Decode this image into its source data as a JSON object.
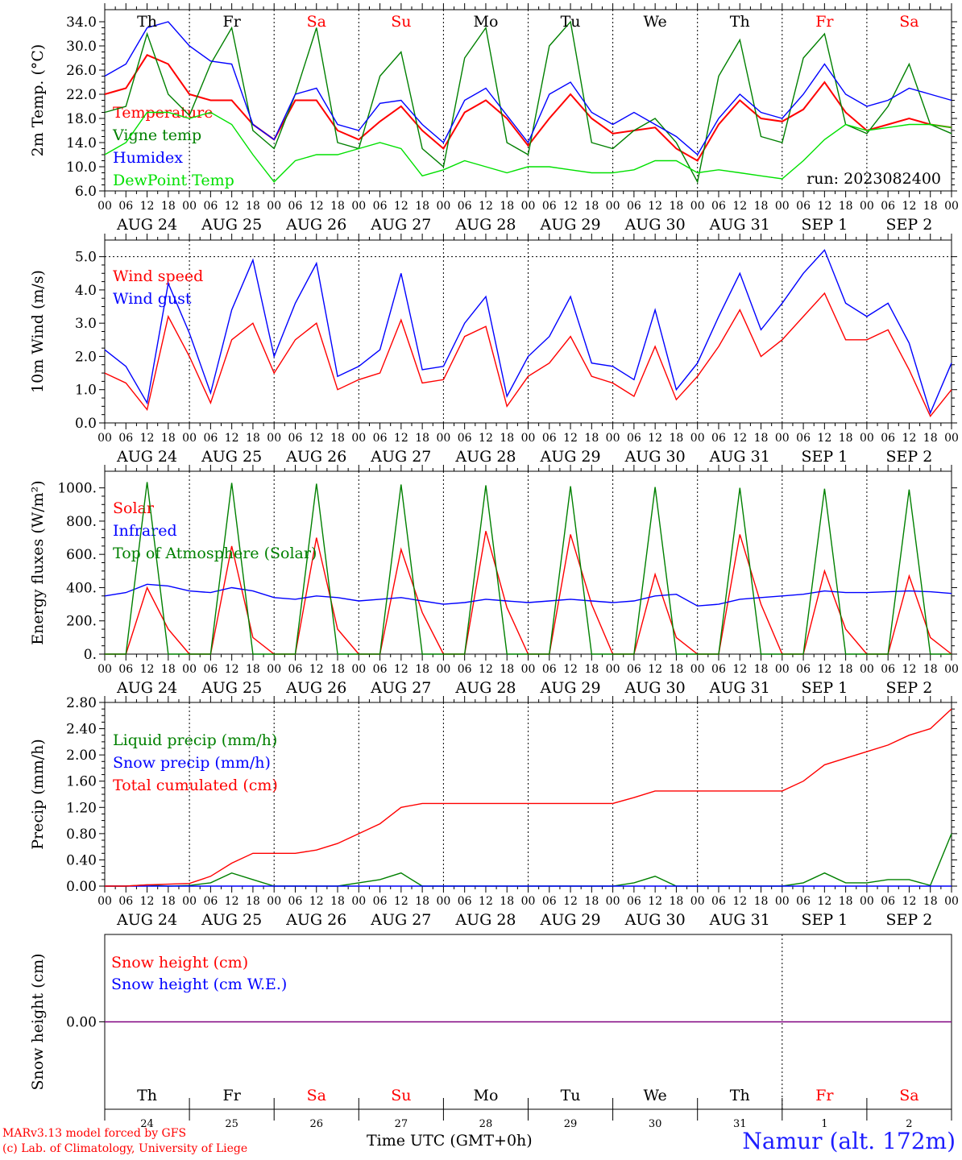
{
  "colors": {
    "temperature": "#ff0000",
    "vine": "#008000",
    "humidex": "#0000ff",
    "dewpoint": "#00e000",
    "axis": "#000000",
    "weekend": "#ff0000",
    "snow_line": "#800080"
  },
  "day_names": [
    "Th",
    "Fr",
    "Sa",
    "Su",
    "Mo",
    "Tu",
    "We",
    "Th",
    "Fr",
    "Sa"
  ],
  "weekend_flags": [
    false,
    false,
    true,
    true,
    false,
    false,
    false,
    false,
    true,
    true
  ],
  "dates": [
    "AUG 24",
    "AUG 25",
    "AUG 26",
    "AUG 27",
    "AUG 28",
    "AUG 29",
    "AUG 30",
    "AUG 31",
    "SEP  1",
    "SEP  2"
  ],
  "date_numbers": [
    "24",
    "25",
    "26",
    "27",
    "28",
    "29",
    "30",
    "31",
    "1",
    "2"
  ],
  "hour_ticks": [
    "00",
    "06",
    "12",
    "18"
  ],
  "footer": {
    "model_line": "MARv3.13 model forced by GFS",
    "lab_line": "(c) Lab. of Climatology, University of Liege",
    "xlabel": "Time UTC (GMT+0h)",
    "station": "Namur (alt. 172m)"
  },
  "chart_data": [
    {
      "type": "line",
      "ylabel": "2m Temp. (°C)",
      "ylim": [
        6,
        36
      ],
      "yticks": [
        "6.0",
        "10.0",
        "14.0",
        "18.0",
        "22.0",
        "26.0",
        "30.0",
        "34.0"
      ],
      "annotation": "run: 2023082400",
      "x_hours": [
        0,
        6,
        12,
        18,
        24,
        30,
        36,
        42,
        48,
        54,
        60,
        66,
        72,
        78,
        84,
        90,
        96,
        102,
        108,
        114,
        120,
        126,
        132,
        138,
        144,
        150,
        156,
        162,
        168,
        174,
        180,
        186,
        192,
        198,
        204,
        210,
        216,
        222,
        228,
        234,
        240
      ],
      "series": [
        {
          "name": "Temperature",
          "color": "#ff0000",
          "values": [
            22,
            23,
            28.5,
            27,
            22,
            21,
            21,
            17,
            14.5,
            21,
            21,
            16,
            14.5,
            17.5,
            20,
            16,
            13,
            19,
            21,
            18,
            13.5,
            18,
            22,
            18,
            15.5,
            16,
            16.5,
            13,
            11,
            17,
            21,
            18,
            17.5,
            19.5,
            24,
            19,
            16,
            17,
            18,
            17,
            16.5
          ]
        },
        {
          "name": "Vigne temp",
          "color": "#008000",
          "values": [
            19,
            20,
            32,
            22,
            18.5,
            27,
            33,
            16,
            13,
            22,
            33,
            14,
            13,
            25,
            29,
            13,
            10,
            28,
            33,
            14,
            12,
            30,
            34,
            14,
            13,
            16,
            18,
            14,
            7.5,
            25,
            31,
            15,
            14,
            28,
            32,
            17,
            15.5,
            20,
            27,
            17,
            15.5
          ]
        },
        {
          "name": "Humidex",
          "color": "#0000ff",
          "values": [
            25,
            27,
            33,
            34,
            30,
            27.5,
            27,
            17,
            14.5,
            22,
            23,
            17,
            16,
            20.5,
            21,
            17,
            14,
            21,
            23,
            18.5,
            14,
            22,
            24,
            19,
            17,
            19,
            17,
            15,
            12,
            18,
            22,
            19,
            18,
            22,
            27,
            22,
            20,
            21,
            23,
            22,
            21
          ]
        },
        {
          "name": "DewPoint Temp",
          "color": "#00e000",
          "values": [
            12,
            14,
            19,
            19,
            18,
            19,
            17,
            12,
            7.5,
            11,
            12,
            12,
            13,
            14,
            13,
            8.5,
            9.5,
            11,
            10,
            9,
            10,
            10,
            9.5,
            9,
            9,
            9.5,
            11,
            11,
            9,
            9.5,
            9,
            8.5,
            8,
            11,
            14.5,
            17,
            16,
            16.5,
            17,
            17,
            16.5
          ]
        }
      ]
    },
    {
      "type": "line",
      "ylabel": "10m Wind (m/s)",
      "ylim": [
        0,
        5.5
      ],
      "yticks": [
        "0.0",
        "1.0",
        "2.0",
        "3.0",
        "4.0",
        "5.0"
      ],
      "x_hours": [
        0,
        6,
        12,
        18,
        24,
        30,
        36,
        42,
        48,
        54,
        60,
        66,
        72,
        78,
        84,
        90,
        96,
        102,
        108,
        114,
        120,
        126,
        132,
        138,
        144,
        150,
        156,
        162,
        168,
        174,
        180,
        186,
        192,
        198,
        204,
        210,
        216,
        222,
        228,
        234,
        240
      ],
      "series": [
        {
          "name": "Wind speed",
          "color": "#ff0000",
          "values": [
            1.5,
            1.2,
            0.4,
            3.2,
            2.0,
            0.6,
            2.5,
            3.0,
            1.5,
            2.5,
            3.0,
            1.0,
            1.3,
            1.5,
            3.1,
            1.2,
            1.3,
            2.6,
            2.9,
            0.5,
            1.4,
            1.8,
            2.6,
            1.4,
            1.2,
            0.8,
            2.3,
            0.7,
            1.4,
            2.3,
            3.4,
            2.0,
            2.5,
            3.2,
            3.9,
            2.5,
            2.5,
            2.8,
            1.6,
            0.2,
            1.0
          ]
        },
        {
          "name": "Wind gust",
          "color": "#0000ff",
          "values": [
            2.2,
            1.7,
            0.6,
            4.2,
            2.7,
            0.9,
            3.4,
            4.9,
            2.0,
            3.6,
            4.8,
            1.4,
            1.7,
            2.2,
            4.5,
            1.6,
            1.7,
            3.0,
            3.8,
            0.8,
            2.0,
            2.6,
            3.8,
            1.8,
            1.7,
            1.3,
            3.4,
            1.0,
            1.8,
            3.2,
            4.5,
            2.8,
            3.6,
            4.5,
            5.2,
            3.6,
            3.2,
            3.6,
            2.4,
            0.3,
            1.8
          ]
        }
      ]
    },
    {
      "type": "line",
      "ylabel": "Energy fluxes (W/m²)",
      "ylim": [
        0,
        1100
      ],
      "yticks": [
        "0.",
        "200.",
        "400.",
        "600.",
        "800.",
        "1000."
      ],
      "x_hours": [
        0,
        6,
        12,
        18,
        24,
        30,
        36,
        42,
        48,
        54,
        60,
        66,
        72,
        78,
        84,
        90,
        96,
        102,
        108,
        114,
        120,
        126,
        132,
        138,
        144,
        150,
        156,
        162,
        168,
        174,
        180,
        186,
        192,
        198,
        204,
        210,
        216,
        222,
        228,
        234,
        240
      ],
      "series": [
        {
          "name": "Solar",
          "color": "#ff0000",
          "values": [
            0,
            0,
            400,
            150,
            0,
            0,
            650,
            100,
            0,
            0,
            700,
            150,
            0,
            0,
            630,
            250,
            0,
            0,
            740,
            280,
            0,
            0,
            720,
            300,
            0,
            0,
            480,
            100,
            0,
            0,
            720,
            300,
            0,
            0,
            500,
            150,
            0,
            0,
            470,
            100,
            0
          ]
        },
        {
          "name": "Infrared",
          "color": "#0000ff",
          "values": [
            350,
            370,
            420,
            410,
            380,
            370,
            400,
            380,
            340,
            330,
            350,
            340,
            320,
            330,
            340,
            320,
            300,
            310,
            330,
            320,
            310,
            320,
            330,
            320,
            310,
            320,
            350,
            360,
            290,
            300,
            330,
            340,
            350,
            360,
            380,
            370,
            370,
            375,
            380,
            375,
            365
          ]
        },
        {
          "name": "Top of Atmosphere (Solar)",
          "color": "#008000",
          "values": [
            0,
            0,
            1035,
            0,
            0,
            0,
            1030,
            0,
            0,
            0,
            1025,
            0,
            0,
            0,
            1020,
            0,
            0,
            0,
            1015,
            0,
            0,
            0,
            1010,
            0,
            0,
            0,
            1005,
            0,
            0,
            0,
            1000,
            0,
            0,
            0,
            995,
            0,
            0,
            0,
            990,
            0,
            0
          ]
        }
      ]
    },
    {
      "type": "line",
      "ylabel": "Precip (mm/h)",
      "ylim": [
        0,
        2.8
      ],
      "yticks": [
        "0.00",
        "0.40",
        "0.80",
        "1.20",
        "1.60",
        "2.00",
        "2.40",
        "2.80"
      ],
      "x_hours": [
        0,
        6,
        12,
        18,
        24,
        30,
        36,
        42,
        48,
        54,
        60,
        66,
        72,
        78,
        84,
        90,
        96,
        102,
        108,
        114,
        120,
        126,
        132,
        138,
        144,
        150,
        156,
        162,
        168,
        174,
        180,
        186,
        192,
        198,
        204,
        210,
        216,
        222,
        228,
        234,
        240
      ],
      "series": [
        {
          "name": "Liquid precip (mm/h)",
          "color": "#008000",
          "values": [
            0,
            0,
            0.02,
            0,
            0.01,
            0.05,
            0.2,
            0.1,
            0,
            0,
            0,
            0,
            0.05,
            0.1,
            0.2,
            0,
            0,
            0,
            0,
            0,
            0,
            0,
            0,
            0,
            0,
            0.05,
            0.15,
            0,
            0,
            0,
            0,
            0,
            0,
            0.05,
            0.2,
            0.05,
            0.05,
            0.1,
            0.1,
            0.01,
            0.8
          ]
        },
        {
          "name": "Snow precip (mm/h)",
          "color": "#0000ff",
          "values": [
            0,
            0,
            0,
            0,
            0,
            0,
            0,
            0,
            0,
            0,
            0,
            0,
            0,
            0,
            0,
            0,
            0,
            0,
            0,
            0,
            0,
            0,
            0,
            0,
            0,
            0,
            0,
            0,
            0,
            0,
            0,
            0,
            0,
            0,
            0,
            0,
            0,
            0,
            0,
            0,
            0
          ]
        },
        {
          "name": "Total cumulated (cm)",
          "color": "#ff0000",
          "values": [
            0,
            0,
            0.02,
            0.03,
            0.04,
            0.15,
            0.35,
            0.5,
            0.5,
            0.5,
            0.55,
            0.65,
            0.8,
            0.95,
            1.2,
            1.26,
            1.26,
            1.26,
            1.26,
            1.26,
            1.26,
            1.26,
            1.26,
            1.26,
            1.26,
            1.35,
            1.45,
            1.45,
            1.45,
            1.45,
            1.45,
            1.45,
            1.45,
            1.6,
            1.85,
            1.95,
            2.05,
            2.15,
            2.3,
            2.4,
            2.7
          ]
        }
      ]
    },
    {
      "type": "line",
      "ylabel": "Snow height (cm)",
      "yticks": [
        "0.00"
      ],
      "series": [
        {
          "name": "Snow height (cm)",
          "color": "#ff0000",
          "values": [
            0,
            0
          ]
        },
        {
          "name": "Snow height (cm W.E.)",
          "color": "#0000ff",
          "values": [
            0,
            0
          ]
        }
      ]
    }
  ]
}
